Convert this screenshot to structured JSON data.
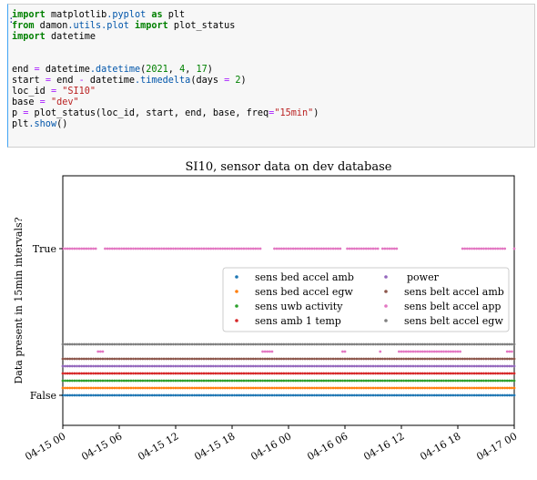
{
  "cell": {
    "prompt": ":",
    "code_lines": [
      [
        [
          "kw",
          "import"
        ],
        [
          "t",
          " matplotlib"
        ],
        [
          "fn",
          ".pyplot"
        ],
        [
          "t",
          " "
        ],
        [
          "kw",
          "as"
        ],
        [
          "t",
          " plt"
        ]
      ],
      [
        [
          "kw",
          "from"
        ],
        [
          "t",
          " damon"
        ],
        [
          "fn",
          ".utils"
        ],
        [
          "fn",
          ".plot"
        ],
        [
          "t",
          " "
        ],
        [
          "kw",
          "import"
        ],
        [
          "t",
          " plot_status"
        ]
      ],
      [
        [
          "kw",
          "import"
        ],
        [
          "t",
          " datetime"
        ]
      ],
      [],
      [],
      [
        [
          "t",
          "end "
        ],
        [
          "op",
          "="
        ],
        [
          "t",
          " datetime"
        ],
        [
          "fn",
          ".datetime"
        ],
        [
          "t",
          "("
        ],
        [
          "num",
          "2021"
        ],
        [
          "t",
          ", "
        ],
        [
          "num",
          "4"
        ],
        [
          "t",
          ", "
        ],
        [
          "num",
          "17"
        ],
        [
          "t",
          ")"
        ]
      ],
      [
        [
          "t",
          "start "
        ],
        [
          "op",
          "="
        ],
        [
          "t",
          " end "
        ],
        [
          "op",
          "-"
        ],
        [
          "t",
          " datetime"
        ],
        [
          "fn",
          ".timedelta"
        ],
        [
          "t",
          "(days "
        ],
        [
          "op",
          "="
        ],
        [
          "t",
          " "
        ],
        [
          "num",
          "2"
        ],
        [
          "t",
          ")"
        ]
      ],
      [
        [
          "t",
          "loc_id "
        ],
        [
          "op",
          "="
        ],
        [
          "t",
          " "
        ],
        [
          "str",
          "\"SI10\""
        ]
      ],
      [
        [
          "t",
          "base "
        ],
        [
          "op",
          "="
        ],
        [
          "t",
          " "
        ],
        [
          "str",
          "\"dev\""
        ]
      ],
      [
        [
          "t",
          "p "
        ],
        [
          "op",
          "="
        ],
        [
          "t",
          " plot_status(loc_id, start, end, base, freq"
        ],
        [
          "op",
          "="
        ],
        [
          "str",
          "\"15min\""
        ],
        [
          "t",
          ")"
        ]
      ],
      [
        [
          "t",
          "plt"
        ],
        [
          "fn",
          ".show"
        ],
        [
          "t",
          "()"
        ]
      ]
    ]
  },
  "chart_data": {
    "type": "scatter",
    "title": "SI10, sensor data on dev database",
    "ylabel": "Data present in 15min intervals?",
    "xlabel": "",
    "x_ticks": [
      "04-15 00",
      "04-15 06",
      "04-15 12",
      "04-15 18",
      "04-16 00",
      "04-16 06",
      "04-16 12",
      "04-16 18",
      "04-17 00"
    ],
    "x_range_hours": [
      0,
      48
    ],
    "y_ticks": [
      "True",
      "False"
    ],
    "interval_minutes": 15,
    "legend_placement": "center-right",
    "series": [
      {
        "name": "sens bed accel amb",
        "color": "#1f77b4",
        "true_ranges": []
      },
      {
        "name": "sens bed accel egw",
        "color": "#ff7f0e",
        "true_ranges": []
      },
      {
        "name": "sens uwb activity",
        "color": "#2ca02c",
        "true_ranges": []
      },
      {
        "name": "sens amb 1 temp",
        "color": "#d62728",
        "true_ranges": []
      },
      {
        "name": "power",
        "color": "#9467bd",
        "true_ranges": []
      },
      {
        "name": "sens belt accel amb",
        "color": "#8c564b",
        "true_ranges": []
      },
      {
        "name": "sens belt accel app",
        "color": "#e377c2",
        "true_ranges": [
          [
            0,
            3.5
          ],
          [
            4.3,
            21.2
          ],
          [
            22.5,
            29.5
          ],
          [
            30.2,
            33.5
          ],
          [
            33.8,
            35.7
          ],
          [
            42.5,
            47.2
          ],
          [
            47.8,
            48
          ]
        ]
      },
      {
        "name": "sens belt accel egw",
        "color": "#7f7f7f",
        "true_ranges": []
      }
    ]
  }
}
